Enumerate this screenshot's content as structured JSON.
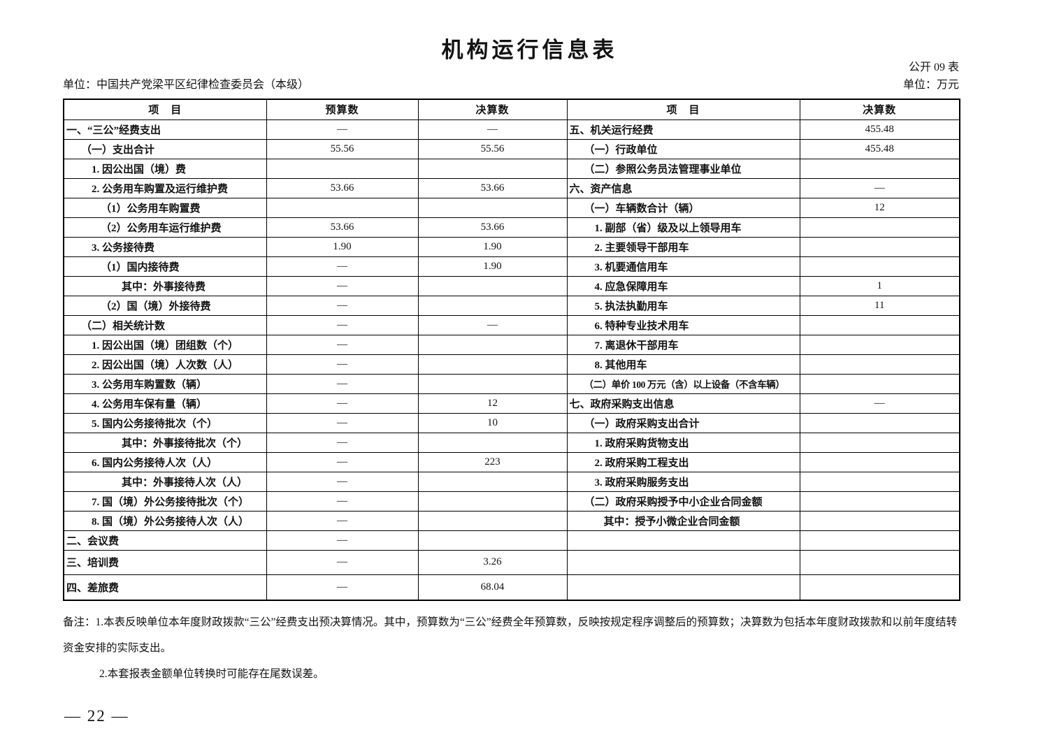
{
  "page": {
    "title": "机构运行信息表",
    "table_code": "公开 09 表",
    "unit_label": "单位：中国共产党梁平区纪律检查委员会（本级）",
    "currency_label": "单位：万元",
    "page_number": "— 22 —"
  },
  "colors": {
    "background": "#ffffff",
    "text": "#121212",
    "border": "#000000"
  },
  "table": {
    "headers": [
      "项　目",
      "预算数",
      "决算数",
      "项　目",
      "决算数"
    ],
    "rows": [
      {
        "l1": "一、“三公”经费支出",
        "i1": 0,
        "b": "—",
        "f1": "—",
        "l2": "五、机关运行经费",
        "i2": 0,
        "f2": "455.48"
      },
      {
        "l1": "（一）支出合计",
        "i1": 1,
        "b": "55.56",
        "f1": "55.56",
        "l2": "（一）行政单位",
        "i2": 1,
        "f2": "455.48"
      },
      {
        "l1": "1. 因公出国（境）费",
        "i1": 2,
        "b": "",
        "f1": "",
        "l2": "（二）参照公务员法管理事业单位",
        "i2": 1,
        "f2": ""
      },
      {
        "l1": "2. 公务用车购置及运行维护费",
        "i1": 2,
        "b": "53.66",
        "f1": "53.66",
        "l2": "六、资产信息",
        "i2": 0,
        "f2": "—"
      },
      {
        "l1": "（1）公务用车购置费",
        "i1": 3,
        "b": "",
        "f1": "",
        "l2": "（一）车辆数合计（辆）",
        "i2": 1,
        "f2": "12"
      },
      {
        "l1": "（2）公务用车运行维护费",
        "i1": 3,
        "b": "53.66",
        "f1": "53.66",
        "l2": "1. 副部（省）级及以上领导用车",
        "i2": 2,
        "f2": ""
      },
      {
        "l1": "3. 公务接待费",
        "i1": 2,
        "b": "1.90",
        "f1": "1.90",
        "l2": "2. 主要领导干部用车",
        "i2": 2,
        "f2": ""
      },
      {
        "l1": "（1）国内接待费",
        "i1": 3,
        "b": "—",
        "f1": "1.90",
        "l2": "3. 机要通信用车",
        "i2": 2,
        "f2": ""
      },
      {
        "l1": "其中：外事接待费",
        "i1": 4,
        "b": "—",
        "f1": "",
        "l2": "4. 应急保障用车",
        "i2": 2,
        "f2": "1"
      },
      {
        "l1": "（2）国（境）外接待费",
        "i1": 3,
        "b": "—",
        "f1": "",
        "l2": "5. 执法执勤用车",
        "i2": 2,
        "f2": "11"
      },
      {
        "l1": "（二）相关统计数",
        "i1": 1,
        "b": "—",
        "f1": "—",
        "l2": "6. 特种专业技术用车",
        "i2": 2,
        "f2": ""
      },
      {
        "l1": "1. 因公出国（境）团组数（个）",
        "i1": 2,
        "b": "—",
        "f1": "",
        "l2": "7. 离退休干部用车",
        "i2": 2,
        "f2": ""
      },
      {
        "l1": "2. 因公出国（境）人次数（人）",
        "i1": 2,
        "b": "—",
        "f1": "",
        "l2": "8. 其他用车",
        "i2": 2,
        "f2": ""
      },
      {
        "l1": "3. 公务用车购置数（辆）",
        "i1": 2,
        "b": "—",
        "f1": "",
        "l2": "（二）单价 100 万元（含）以上设备（不含车辆）",
        "i2": 1,
        "f2": ""
      },
      {
        "l1": "4. 公务用车保有量（辆）",
        "i1": 2,
        "b": "—",
        "f1": "12",
        "l2": "七、政府采购支出信息",
        "i2": 0,
        "f2": "—"
      },
      {
        "l1": "5. 国内公务接待批次（个）",
        "i1": 2,
        "b": "—",
        "f1": "10",
        "l2": "（一）政府采购支出合计",
        "i2": 1,
        "f2": ""
      },
      {
        "l1": "其中：外事接待批次（个）",
        "i1": 4,
        "b": "—",
        "f1": "",
        "l2": "1. 政府采购货物支出",
        "i2": 2,
        "f2": ""
      },
      {
        "l1": "6. 国内公务接待人次（人）",
        "i1": 2,
        "b": "—",
        "f1": "223",
        "l2": "2. 政府采购工程支出",
        "i2": 2,
        "f2": ""
      },
      {
        "l1": "其中：外事接待人次（人）",
        "i1": 4,
        "b": "—",
        "f1": "",
        "l2": "3. 政府采购服务支出",
        "i2": 2,
        "f2": ""
      },
      {
        "l1": "7. 国（境）外公务接待批次（个）",
        "i1": 2,
        "b": "—",
        "f1": "",
        "l2": "（二）政府采购授予中小企业合同金额",
        "i2": 1,
        "f2": ""
      },
      {
        "l1": "8. 国（境）外公务接待人次（人）",
        "i1": 2,
        "b": "—",
        "f1": "",
        "l2": "其中：授予小微企业合同金额",
        "i2": 3,
        "f2": ""
      },
      {
        "l1": "二、会议费",
        "i1": 0,
        "b": "—",
        "f1": "",
        "l2": "",
        "i2": 0,
        "f2": ""
      },
      {
        "l1": "三、培训费",
        "i1": 0,
        "b": "—",
        "f1": "3.26",
        "l2": "",
        "i2": 0,
        "f2": ""
      },
      {
        "l1": "四、差旅费",
        "i1": 0,
        "b": "—",
        "f1": "68.04",
        "l2": "",
        "i2": 0,
        "f2": ""
      }
    ]
  },
  "notes": [
    "备注：1.本表反映单位本年度财政拨款“三公”经费支出预决算情况。其中，预算数为“三公”经费全年预算数，反映按规定程序调整后的预算数；决算数为包括本年度财政拨款和以前年度结转",
    "资金安排的实际支出。",
    "2.本套报表金额单位转换时可能存在尾数误差。"
  ]
}
